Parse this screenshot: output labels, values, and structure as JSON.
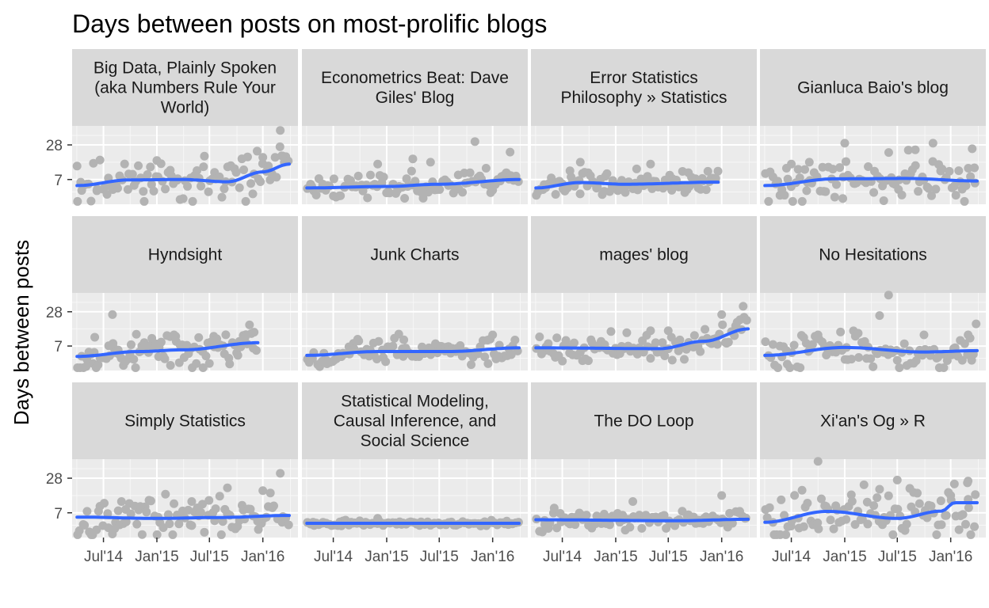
{
  "chart_data": {
    "type": "scatter",
    "title": "Days between posts on most-prolific blogs",
    "xlabel": "",
    "ylabel": "Days between posts",
    "y_scale": "log",
    "y_ticks": [
      7,
      28
    ],
    "y_tick_labels": [
      "7",
      "28"
    ],
    "x_ticks": [
      "2014-07-01",
      "2015-01-01",
      "2015-07-01",
      "2016-01-01"
    ],
    "x_tick_labels": [
      "Jul'14",
      "Jan'15",
      "Jul'15",
      "Jan'16"
    ],
    "xlim": [
      "2014-03-15",
      "2016-05-01"
    ],
    "ylim": [
      2.6,
      60
    ],
    "grid": true,
    "point_color": "#b3b3b3",
    "line_color": "#3366ff",
    "panel_color": "#ebebeb",
    "strip_color": "#d9d9d9",
    "panels": [
      {
        "name": "Big Data, Plainly Spoken (aka Numbers Rule Your World)",
        "strip_lines": [
          "Big Data, Plainly Spoken",
          "(aka Numbers Rule Your",
          "World)"
        ],
        "range": [
          "2014-04-01",
          "2016-04-01"
        ],
        "spread": 1.0,
        "seed": 11,
        "smooth": [
          [
            "2014-04-01",
            5.5
          ],
          [
            "2014-10-01",
            6.9
          ],
          [
            "2015-04-01",
            7.0
          ],
          [
            "2015-09-01",
            6.4
          ],
          [
            "2016-01-01",
            9.5
          ],
          [
            "2016-04-01",
            13
          ]
        ],
        "outliers": [
          [
            "2016-03-01",
            50
          ],
          [
            "2016-01-01",
            17
          ],
          [
            "2016-03-15",
            14
          ],
          [
            "2014-04-01",
            12
          ],
          [
            "2015-01-01",
            15
          ]
        ]
      },
      {
        "name": "Econometrics Beat: Dave Giles' Blog",
        "strip_lines": [
          "Econometrics Beat: Dave",
          "Giles' Blog"
        ],
        "range": [
          "2014-04-01",
          "2016-04-01"
        ],
        "spread": 0.6,
        "seed": 23,
        "smooth": [
          [
            "2014-04-01",
            5.0
          ],
          [
            "2015-01-01",
            5.3
          ],
          [
            "2015-07-01",
            5.8
          ],
          [
            "2016-04-01",
            7.0
          ]
        ],
        "outliers": [
          [
            "2015-11-01",
            32
          ],
          [
            "2016-03-01",
            21
          ],
          [
            "2015-06-01",
            14
          ],
          [
            "2015-04-01",
            16
          ],
          [
            "2014-12-01",
            13
          ]
        ]
      },
      {
        "name": "Error Statistics Philosophy » Statistics",
        "strip_lines": [
          "Error Statistics",
          "Philosophy » Statistics"
        ],
        "range": [
          "2014-04-01",
          "2015-12-20"
        ],
        "spread": 0.5,
        "seed": 37,
        "smooth": [
          [
            "2014-04-01",
            5.0
          ],
          [
            "2014-09-01",
            6.2
          ],
          [
            "2015-02-01",
            5.8
          ],
          [
            "2015-12-20",
            6.3
          ]
        ],
        "outliers": [
          [
            "2014-09-01",
            14
          ],
          [
            "2015-05-01",
            13
          ]
        ]
      },
      {
        "name": "Gianluca Baio's blog",
        "strip_lines": [
          "Gianluca Baio's blog"
        ],
        "range": [
          "2014-04-01",
          "2016-04-01"
        ],
        "spread": 0.95,
        "seed": 41,
        "smooth": [
          [
            "2014-04-01",
            5.5
          ],
          [
            "2014-12-01",
            7.2
          ],
          [
            "2015-08-01",
            7.3
          ],
          [
            "2016-04-01",
            6.6
          ]
        ],
        "outliers": [
          [
            "2015-01-01",
            30
          ],
          [
            "2015-11-01",
            30
          ],
          [
            "2015-09-01",
            23
          ],
          [
            "2016-03-15",
            24
          ],
          [
            "2014-09-01",
            14
          ],
          [
            "2014-07-01",
            13
          ]
        ]
      },
      {
        "name": "Hyndsight",
        "strip_lines": [
          "Hyndsight"
        ],
        "range": [
          "2014-04-01",
          "2015-12-15"
        ],
        "spread": 0.9,
        "seed": 53,
        "smooth": [
          [
            "2014-04-01",
            4.6
          ],
          [
            "2014-11-01",
            5.6
          ],
          [
            "2015-04-01",
            6.0
          ],
          [
            "2015-12-15",
            8.0
          ]
        ],
        "outliers": [
          [
            "2014-08-01",
            25
          ],
          [
            "2015-03-01",
            11
          ],
          [
            "2014-06-01",
            10
          ],
          [
            "2015-11-01",
            10
          ]
        ]
      },
      {
        "name": "Junk Charts",
        "strip_lines": [
          "Junk Charts"
        ],
        "range": [
          "2014-04-01",
          "2016-04-01"
        ],
        "spread": 0.6,
        "seed": 67,
        "smooth": [
          [
            "2014-04-01",
            4.8
          ],
          [
            "2014-12-01",
            5.6
          ],
          [
            "2015-08-01",
            5.6
          ],
          [
            "2016-04-01",
            6.5
          ]
        ],
        "outliers": [
          [
            "2016-01-01",
            11
          ],
          [
            "2015-03-01",
            9
          ]
        ]
      },
      {
        "name": "mages' blog",
        "strip_lines": [
          "mages' blog"
        ],
        "range": [
          "2014-04-01",
          "2016-04-01"
        ],
        "spread": 0.6,
        "seed": 71,
        "smooth": [
          [
            "2014-04-01",
            6.5
          ],
          [
            "2015-06-01",
            6.3
          ],
          [
            "2015-11-01",
            8.5
          ],
          [
            "2016-04-01",
            14
          ]
        ],
        "outliers": [
          [
            "2016-03-15",
            35
          ],
          [
            "2016-01-01",
            25
          ],
          [
            "2015-05-01",
            13
          ],
          [
            "2015-07-01",
            13
          ]
        ]
      },
      {
        "name": "No Hesitations",
        "strip_lines": [
          "No Hesitations"
        ],
        "range": [
          "2014-04-01",
          "2016-04-01"
        ],
        "spread": 0.9,
        "seed": 83,
        "smooth": [
          [
            "2014-04-01",
            4.8
          ],
          [
            "2015-01-01",
            6.6
          ],
          [
            "2015-10-01",
            5.5
          ],
          [
            "2016-04-01",
            5.8
          ]
        ],
        "outliers": [
          [
            "2015-06-01",
            55
          ],
          [
            "2015-05-01",
            24
          ],
          [
            "2016-03-01",
            11
          ],
          [
            "2014-10-01",
            11
          ],
          [
            "2015-10-01",
            11
          ]
        ]
      },
      {
        "name": "Simply Statistics",
        "strip_lines": [
          "Simply Statistics"
        ],
        "range": [
          "2014-04-01",
          "2016-04-01"
        ],
        "spread": 0.9,
        "seed": 97,
        "smooth": [
          [
            "2014-04-01",
            5.9
          ],
          [
            "2015-01-01",
            5.6
          ],
          [
            "2015-08-01",
            5.8
          ],
          [
            "2016-04-01",
            6.3
          ]
        ],
        "outliers": [
          [
            "2016-03-01",
            34
          ],
          [
            "2015-09-01",
            19
          ],
          [
            "2016-01-01",
            17
          ],
          [
            "2014-09-01",
            11
          ],
          [
            "2015-05-01",
            11
          ]
        ]
      },
      {
        "name": "Statistical Modeling, Causal Inference, and Social Science",
        "strip_lines": [
          "Statistical Modeling,",
          "Causal Inference, and",
          "Social Science"
        ],
        "range": [
          "2014-04-01",
          "2016-04-01"
        ],
        "spread": 0.12,
        "seed": 101,
        "smooth": [
          [
            "2014-04-01",
            4.6
          ],
          [
            "2016-04-01",
            4.6
          ]
        ],
        "outliers": [
          [
            "2014-12-01",
            5.6
          ]
        ]
      },
      {
        "name": "The DO Loop",
        "strip_lines": [
          "The DO Loop"
        ],
        "range": [
          "2014-04-01",
          "2016-04-01"
        ],
        "spread": 0.45,
        "seed": 113,
        "smooth": [
          [
            "2014-04-01",
            5.3
          ],
          [
            "2015-08-01",
            5.1
          ],
          [
            "2016-04-01",
            5.4
          ]
        ],
        "outliers": [
          [
            "2016-01-01",
            14
          ],
          [
            "2015-03-01",
            11
          ]
        ]
      },
      {
        "name": "Xi'an's Og » R",
        "strip_lines": [
          "Xi'an's Og » R"
        ],
        "range": [
          "2014-04-01",
          "2016-04-01"
        ],
        "spread": 1.3,
        "seed": 127,
        "smooth": [
          [
            "2014-04-01",
            4.8
          ],
          [
            "2014-11-01",
            7.4
          ],
          [
            "2015-07-01",
            5.6
          ],
          [
            "2015-12-01",
            7.5
          ],
          [
            "2016-01-15",
            10.5
          ]
        ],
        "outliers": [
          [
            "2014-10-01",
            55
          ],
          [
            "2015-07-01",
            26
          ],
          [
            "2016-03-01",
            25
          ],
          [
            "2015-05-01",
            18
          ],
          [
            "2016-01-01",
            14
          ],
          [
            "2016-03-01",
            12
          ]
        ]
      }
    ]
  }
}
